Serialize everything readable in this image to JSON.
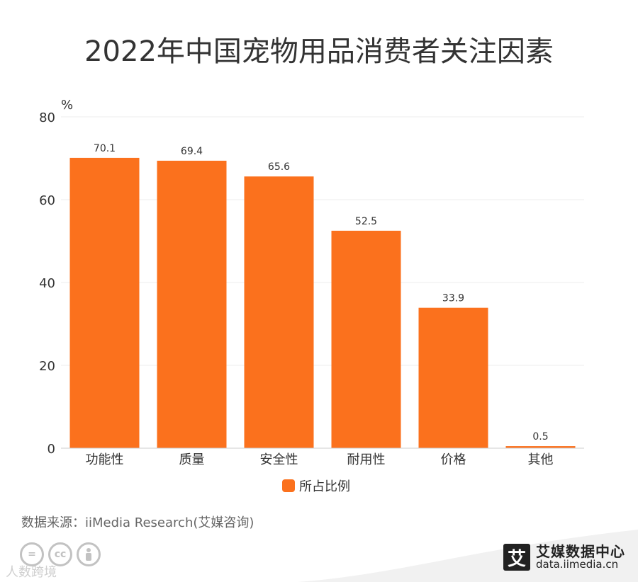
{
  "title": "2022年中国宠物用品消费者关注因素",
  "chart_data": {
    "type": "bar",
    "title": "2022年中国宠物用品消费者关注因素",
    "ylabel": "%",
    "xlabel": "",
    "categories": [
      "功能性",
      "质量",
      "安全性",
      "耐用性",
      "价格",
      "其他"
    ],
    "series": [
      {
        "name": "所占比例",
        "values": [
          70.1,
          69.4,
          65.6,
          52.5,
          33.9,
          0.5
        ],
        "color": "#fb711d"
      }
    ],
    "ylim": [
      0,
      80
    ],
    "yticks": [
      0,
      20,
      40,
      60,
      80
    ],
    "grid": true,
    "legend": "bottom-center"
  },
  "source": {
    "text": "数据来源：iiMedia Research(艾媒咨询)"
  },
  "watermark": "人数跨境",
  "brand": {
    "cn": "艾媒数据中心",
    "en": "data.iimedia.cn",
    "logo": "艾"
  },
  "license_icons": [
    "equals-icon",
    "cc-icon",
    "person-icon"
  ],
  "colors": {
    "bar": "#fb711d",
    "grid": "#eeeeee",
    "axis": "#cccccc",
    "text": "#333333"
  }
}
